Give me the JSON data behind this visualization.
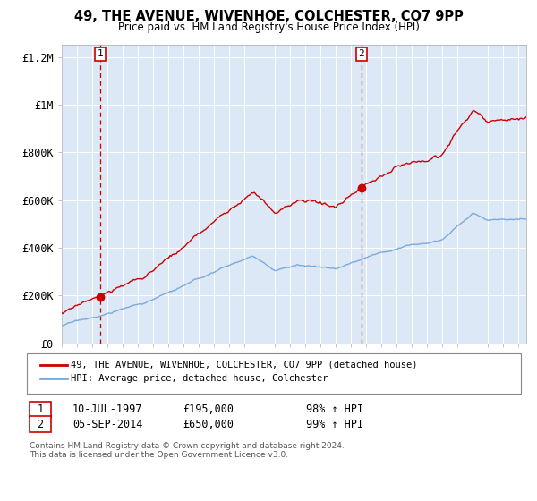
{
  "title": "49, THE AVENUE, WIVENHOE, COLCHESTER, CO7 9PP",
  "subtitle": "Price paid vs. HM Land Registry's House Price Index (HPI)",
  "legend_line1": "49, THE AVENUE, WIVENHOE, COLCHESTER, CO7 9PP (detached house)",
  "legend_line2": "HPI: Average price, detached house, Colchester",
  "annotation1_label": "1",
  "annotation1_date": "10-JUL-1997",
  "annotation1_price": "£195,000",
  "annotation1_hpi": "98% ↑ HPI",
  "annotation1_year": 1997.53,
  "annotation1_value": 195000,
  "annotation2_label": "2",
  "annotation2_date": "05-SEP-2014",
  "annotation2_price": "£650,000",
  "annotation2_hpi": "99% ↑ HPI",
  "annotation2_year": 2014.68,
  "annotation2_value": 650000,
  "footnote": "Contains HM Land Registry data © Crown copyright and database right 2024.\nThis data is licensed under the Open Government Licence v3.0.",
  "hpi_color": "#7aaadd",
  "price_color": "#cc0000",
  "plot_bg": "#dce8f5",
  "ylim_min": 0,
  "ylim_max": 1250000,
  "xlim_min": 1995.0,
  "xlim_max": 2025.5,
  "yticks": [
    0,
    200000,
    400000,
    600000,
    800000,
    1000000,
    1200000
  ],
  "ytick_labels": [
    "£0",
    "£200K",
    "£400K",
    "£600K",
    "£800K",
    "£1M",
    "£1.2M"
  ],
  "xticks": [
    1995,
    1996,
    1997,
    1998,
    1999,
    2000,
    2001,
    2002,
    2003,
    2004,
    2005,
    2006,
    2007,
    2008,
    2009,
    2010,
    2011,
    2012,
    2013,
    2014,
    2015,
    2016,
    2017,
    2018,
    2019,
    2020,
    2021,
    2022,
    2023,
    2024,
    2025
  ]
}
